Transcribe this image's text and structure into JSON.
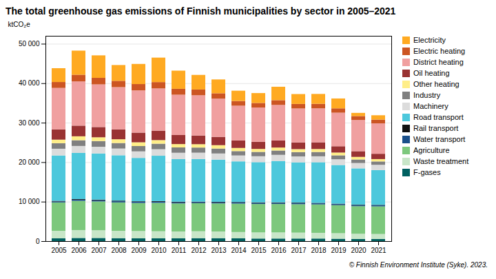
{
  "chart_data": {
    "type": "bar",
    "stacked": true,
    "title": "The total greenhouse gas emissions of Finnish municipalities by sector in 2005–2021",
    "ylabel": "ktCO₂e",
    "caption": "© Finnish Environment Institute (Syke). 2023.",
    "categories": [
      "2005",
      "2006",
      "2007",
      "2008",
      "2009",
      "2010",
      "2011",
      "2012",
      "2013",
      "2014",
      "2015",
      "2016",
      "2017",
      "2018",
      "2019",
      "2020",
      "2021"
    ],
    "series": [
      {
        "name": "F-gases",
        "color": "#006060",
        "values": [
          700,
          800,
          800,
          750,
          700,
          700,
          700,
          750,
          750,
          700,
          650,
          650,
          650,
          650,
          600,
          550,
          550
        ]
      },
      {
        "name": "Waste treatment",
        "color": "#c8e6c8",
        "values": [
          1900,
          2000,
          1950,
          1850,
          1850,
          1800,
          1750,
          1750,
          1700,
          1600,
          1550,
          1550,
          1500,
          1450,
          1400,
          1300,
          1250
        ]
      },
      {
        "name": "Agriculture",
        "color": "#7DC87D",
        "values": [
          7200,
          7400,
          7300,
          7200,
          7100,
          7200,
          7100,
          7100,
          7100,
          7200,
          7200,
          7200,
          7200,
          7200,
          7100,
          7000,
          7000
        ]
      },
      {
        "name": "Water transport",
        "color": "#1a4f8a",
        "values": [
          250,
          300,
          300,
          300,
          280,
          280,
          280,
          280,
          280,
          280,
          280,
          280,
          280,
          280,
          280,
          280,
          280
        ]
      },
      {
        "name": "Rail transport",
        "color": "#111111",
        "values": [
          150,
          150,
          150,
          150,
          150,
          150,
          150,
          120,
          120,
          120,
          120,
          120,
          120,
          100,
          100,
          100,
          100
        ]
      },
      {
        "name": "Road transport",
        "color": "#4DC8DC",
        "values": [
          11500,
          11700,
          11700,
          11500,
          11000,
          11500,
          10800,
          10800,
          10700,
          10300,
          10200,
          10500,
          10200,
          10300,
          9800,
          9200,
          8800
        ]
      },
      {
        "name": "Machinery",
        "color": "#DCDCDC",
        "values": [
          1700,
          1750,
          1700,
          1700,
          1650,
          1650,
          1600,
          1600,
          1550,
          1500,
          1500,
          1550,
          1500,
          1500,
          1450,
          1350,
          1350
        ]
      },
      {
        "name": "Industry",
        "color": "#808080",
        "values": [
          1400,
          1450,
          1450,
          1400,
          1350,
          1400,
          1350,
          1300,
          1250,
          1100,
          1100,
          1100,
          1100,
          1100,
          1000,
          900,
          850
        ]
      },
      {
        "name": "Other heating",
        "color": "#FFEE88",
        "values": [
          900,
          1000,
          950,
          950,
          950,
          900,
          850,
          850,
          850,
          800,
          750,
          750,
          750,
          750,
          700,
          650,
          600
        ]
      },
      {
        "name": "Oil heating",
        "color": "#993333",
        "values": [
          2600,
          2700,
          2600,
          2500,
          2450,
          2400,
          2300,
          2200,
          2100,
          1900,
          1800,
          1800,
          1700,
          1700,
          1600,
          1450,
          1350
        ]
      },
      {
        "name": "District heating",
        "color": "#F0A0A0",
        "values": [
          10500,
          11200,
          10800,
          10700,
          10700,
          10700,
          10200,
          10200,
          9700,
          8800,
          8700,
          9000,
          8600,
          8600,
          8500,
          7900,
          7700
        ]
      },
      {
        "name": "Electric heating",
        "color": "#CC5522",
        "values": [
          1500,
          1700,
          1650,
          1600,
          1600,
          1600,
          1500,
          1450,
          1350,
          1200,
          1150,
          1200,
          1150,
          1150,
          1100,
          1000,
          950
        ]
      },
      {
        "name": "Electricity",
        "color": "#FFAA22",
        "values": [
          3500,
          6100,
          5700,
          4000,
          5100,
          6200,
          4600,
          3700,
          3500,
          2600,
          2500,
          3400,
          2500,
          2500,
          2500,
          800,
          1100
        ]
      }
    ],
    "ylim": [
      0,
      52000
    ],
    "yticks": [
      0,
      {
        "value": 10000,
        "label": "10 000"
      },
      {
        "value": 20000,
        "label": "20 000"
      },
      {
        "value": 30000,
        "label": "30 000"
      },
      {
        "value": 40000,
        "label": "40 000"
      },
      {
        "value": 50000,
        "label": "50 000"
      }
    ],
    "grid": true,
    "legend": "right"
  }
}
